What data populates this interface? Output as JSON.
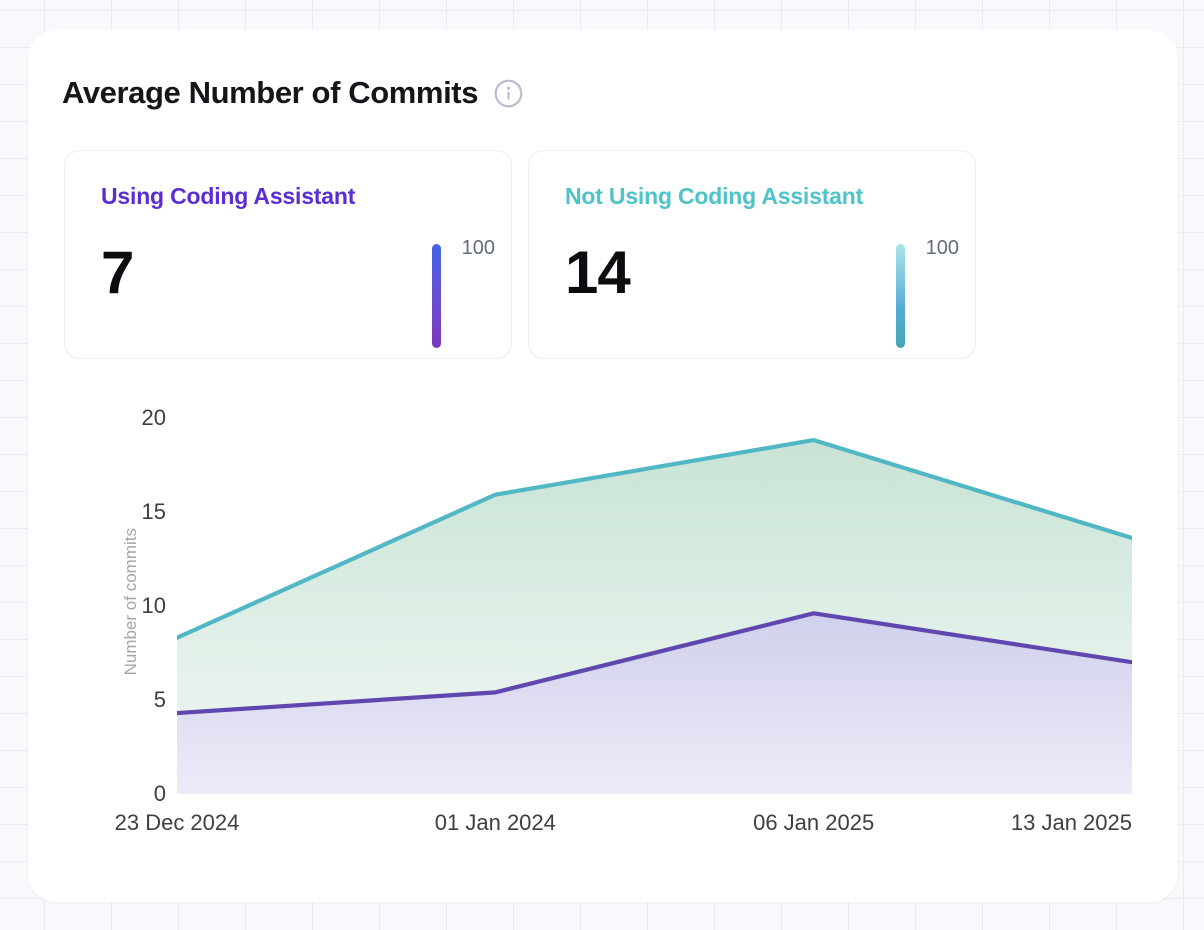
{
  "page": {
    "title": "Average Number of Commits"
  },
  "stat_cards": [
    {
      "label": "Using Coding Assistant",
      "value": "7",
      "gauge_max": "100",
      "accent": "#5B2ED3",
      "bar_gradient": [
        "#4563E5",
        "#6A4FD0 55%",
        "#7C36BA"
      ]
    },
    {
      "label": "Not Using Coding Assistant",
      "value": "14",
      "gauge_max": "100",
      "accent": "#4FC2CA",
      "bar_gradient": [
        "#ABE5E9",
        "#55ABD8 62%",
        "#43A7B2"
      ]
    }
  ],
  "chart_data": {
    "type": "area",
    "x": [
      "23 Dec 2024",
      "01 Jan 2024",
      "06 Jan 2025",
      "13 Jan 2025"
    ],
    "series": [
      {
        "name": "Not Using Coding Assistant",
        "values": [
          8.3,
          15.9,
          18.8,
          13.6
        ],
        "line_color": "#52B7C4",
        "fill_top": "#C8E4D6",
        "fill_bottom": "#F4F8F5"
      },
      {
        "name": "Using Coding Assistant",
        "values": [
          4.3,
          5.4,
          9.6,
          7.0
        ],
        "line_color": "#6047B0",
        "fill_top": "#CFD0EC",
        "fill_bottom": "#EEEBF8"
      }
    ],
    "ylabel": "Number of commits",
    "yticks": [
      0,
      5,
      10,
      15,
      20
    ],
    "ylim": [
      0,
      20.4
    ],
    "grid": false,
    "legend_position": "none"
  }
}
